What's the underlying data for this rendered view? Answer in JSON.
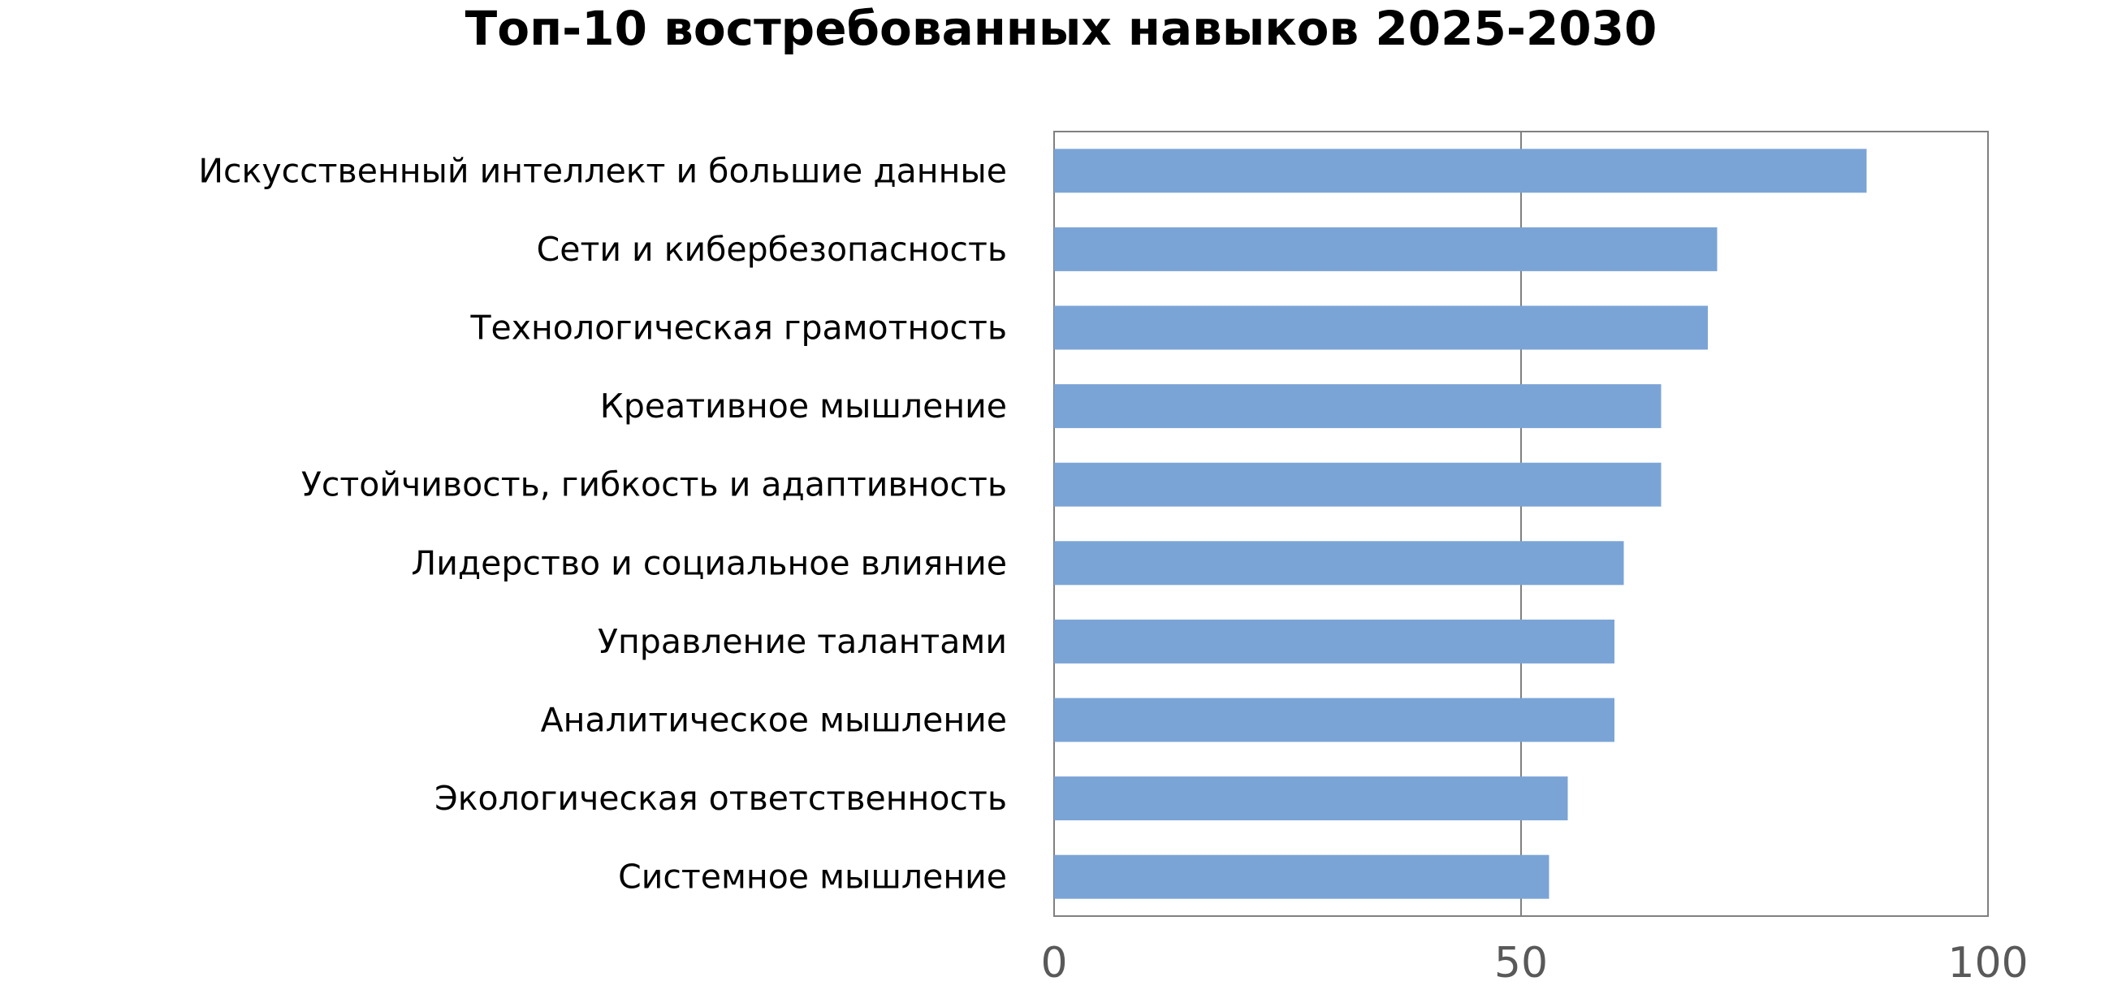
{
  "chart_data": {
    "type": "bar",
    "orientation": "horizontal",
    "title": "Топ-10 востребованных навыков 2025-2030",
    "categories": [
      "Искусственный интеллект и большие данные",
      "Сети и кибербезопасность",
      "Технологическая грамотность",
      "Креативное мышление",
      "Устойчивость, гибкость и адаптивность",
      "Лидерство и социальное влияние",
      "Управление талантами",
      "Аналитическое мышление",
      "Экологическая ответственность",
      "Системное мышление"
    ],
    "values": [
      87,
      71,
      70,
      65,
      65,
      61,
      60,
      60,
      55,
      53
    ],
    "xlim": [
      0,
      100
    ],
    "xticks": [
      0,
      50,
      100
    ],
    "xtick_labels": [
      "0",
      "50",
      "100"
    ],
    "grid": "vertical at 50",
    "legend": "none",
    "bar_color": "#7BA4D6",
    "frame_color": "#808080"
  }
}
